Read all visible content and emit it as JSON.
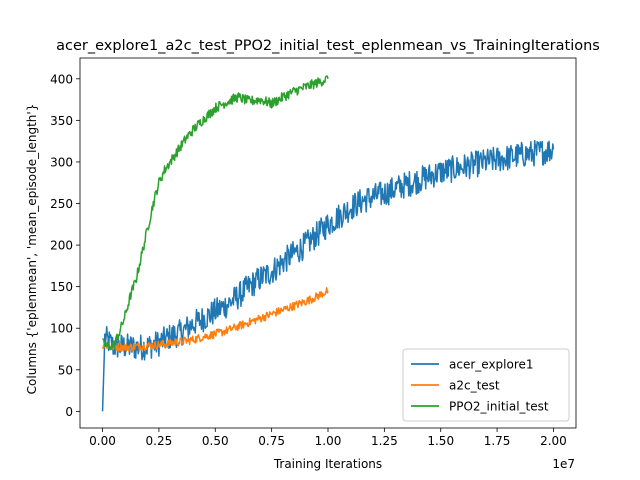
{
  "chart_data": {
    "type": "line",
    "title": "acer_explore1_a2c_test_PPO2_initial_test_eplenmean_vs_TrainingIterations",
    "xlabel": "Training Iterations",
    "ylabel": "Columns {'eplenmean', 'mean_episode_length'}",
    "x_offset_label": "1e7",
    "xlim": [
      -1000000,
      21000000
    ],
    "ylim": [
      -20,
      425
    ],
    "x_tick_values": [
      0,
      2500000,
      5000000,
      7500000,
      10000000,
      12500000,
      15000000,
      17500000,
      20000000
    ],
    "x_tick_labels": [
      "0.00",
      "0.25",
      "0.50",
      "0.75",
      "1.00",
      "1.25",
      "1.50",
      "1.75",
      "2.00"
    ],
    "y_tick_values": [
      0,
      50,
      100,
      150,
      200,
      250,
      300,
      350,
      400
    ],
    "y_tick_labels": [
      "0",
      "50",
      "100",
      "150",
      "200",
      "250",
      "300",
      "350",
      "400"
    ],
    "grid": false,
    "legend_position": "lower-right",
    "series": [
      {
        "name": "acer_explore1",
        "color": "#1f77b4",
        "x": [
          0,
          100000,
          500000,
          1000000,
          1500000,
          2000000,
          2500000,
          3000000,
          3500000,
          4000000,
          4500000,
          5000000,
          5500000,
          6000000,
          6500000,
          7000000,
          7500000,
          8000000,
          8500000,
          9000000,
          9500000,
          10000000,
          10500000,
          11000000,
          11500000,
          12000000,
          12500000,
          13000000,
          13500000,
          14000000,
          14500000,
          15000000,
          15500000,
          16000000,
          16500000,
          17000000,
          17500000,
          18000000,
          18500000,
          19000000,
          19500000,
          20000000
        ],
        "y": [
          0,
          88,
          78,
          78,
          77,
          78,
          82,
          90,
          95,
          105,
          112,
          120,
          128,
          138,
          150,
          160,
          168,
          180,
          190,
          200,
          212,
          225,
          235,
          245,
          253,
          258,
          262,
          268,
          273,
          278,
          283,
          288,
          291,
          294,
          297,
          300,
          303,
          305,
          308,
          310,
          312,
          315
        ],
        "noise": 16
      },
      {
        "name": "a2c_test",
        "color": "#ff7f0e",
        "x": [
          0,
          500000,
          1000000,
          1500000,
          2000000,
          2500000,
          3000000,
          3500000,
          4000000,
          4500000,
          5000000,
          5500000,
          6000000,
          6500000,
          7000000,
          7500000,
          8000000,
          8500000,
          9000000,
          9500000,
          10000000
        ],
        "y": [
          80,
          78,
          77,
          78,
          79,
          80,
          82,
          84,
          86,
          90,
          93,
          97,
          102,
          107,
          112,
          117,
          122,
          127,
          132,
          138,
          145
        ],
        "noise": 5
      },
      {
        "name": "PPO2_initial_test",
        "color": "#2ca02c",
        "x": [
          0,
          250000,
          500000,
          750000,
          1000000,
          1250000,
          1500000,
          1750000,
          2000000,
          2250000,
          2500000,
          2750000,
          3000000,
          3250000,
          3500000,
          3750000,
          4000000,
          4250000,
          4500000,
          4750000,
          5000000,
          5500000,
          6000000,
          6500000,
          7000000,
          7500000,
          8000000,
          8500000,
          9000000,
          9500000,
          10000000
        ],
        "y": [
          82,
          78,
          80,
          95,
          115,
          140,
          160,
          190,
          220,
          250,
          275,
          290,
          300,
          310,
          320,
          330,
          338,
          345,
          352,
          358,
          365,
          372,
          378,
          373,
          375,
          370,
          378,
          385,
          390,
          395,
          400
        ],
        "noise": 6
      }
    ]
  }
}
